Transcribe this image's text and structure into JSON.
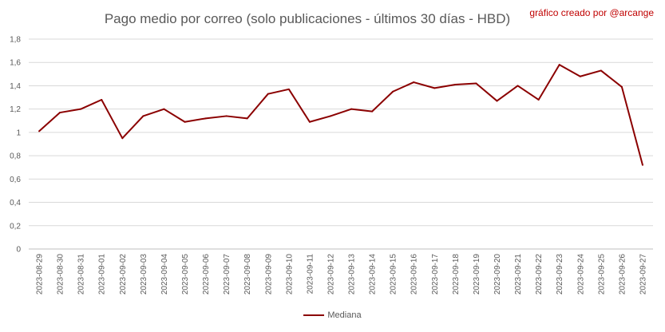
{
  "chart_data": {
    "type": "line",
    "title": "Pago medio por correo (solo publicaciones - últimos 30 días - HBD)",
    "credit": "gráfico creado por @arcange",
    "xlabel": "",
    "ylabel": "",
    "ylim": [
      0,
      1.8
    ],
    "yticks": [
      "0",
      "0,2",
      "0,4",
      "0,6",
      "0,8",
      "1",
      "1,2",
      "1,4",
      "1,6",
      "1,8"
    ],
    "grid": true,
    "legend_position": "bottom",
    "categories": [
      "2023-08-29",
      "2023-08-30",
      "2023-08-31",
      "2023-09-01",
      "2023-09-02",
      "2023-09-03",
      "2023-09-04",
      "2023-09-05",
      "2023-09-06",
      "2023-09-07",
      "2023-09-08",
      "2023-09-09",
      "2023-09-10",
      "2023-09-11",
      "2023-09-12",
      "2023-09-13",
      "2023-09-14",
      "2023-09-15",
      "2023-09-16",
      "2023-09-17",
      "2023-09-18",
      "2023-09-19",
      "2023-09-20",
      "2023-09-21",
      "2023-09-22",
      "2023-09-23",
      "2023-09-24",
      "2023-09-25",
      "2023-09-26",
      "2023-09-27"
    ],
    "series": [
      {
        "name": "Mediana",
        "color": "#8b0000",
        "values": [
          1.01,
          1.17,
          1.2,
          1.28,
          0.95,
          1.14,
          1.2,
          1.09,
          1.12,
          1.14,
          1.12,
          1.33,
          1.37,
          1.09,
          1.14,
          1.2,
          1.18,
          1.35,
          1.43,
          1.38,
          1.41,
          1.42,
          1.27,
          1.4,
          1.28,
          1.58,
          1.48,
          1.53,
          1.39,
          0.72
        ]
      }
    ]
  }
}
